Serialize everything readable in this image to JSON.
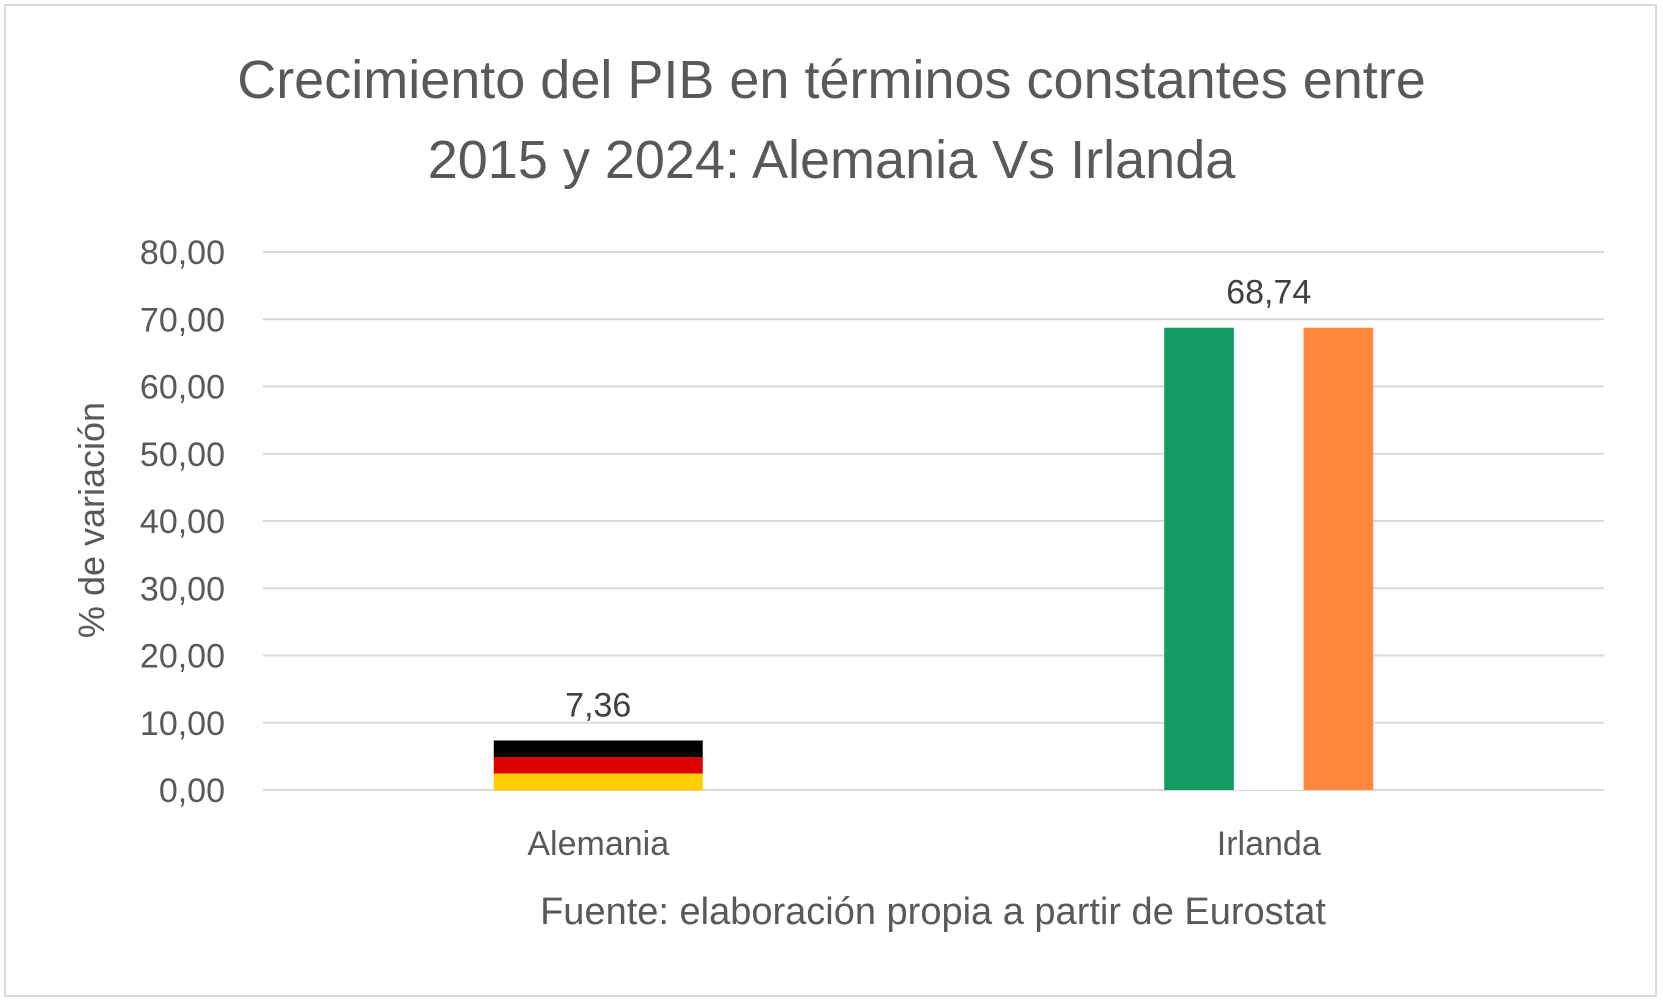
{
  "chart_data": {
    "type": "bar",
    "title_line1": "Crecimiento del PIB en términos constantes entre",
    "title_line2": "2015 y 2024: Alemania Vs Irlanda",
    "ylabel": "% de variación",
    "xlabel": "Fuente: elaboración propia a partir de Eurostat",
    "categories": [
      "Alemania",
      "Irlanda"
    ],
    "values": [
      7.36,
      68.74
    ],
    "data_labels": [
      "7,36",
      "68,74"
    ],
    "ylim": [
      0,
      80
    ],
    "yticks": [
      "0,00",
      "10,00",
      "20,00",
      "30,00",
      "40,00",
      "50,00",
      "60,00",
      "70,00",
      "80,00"
    ],
    "grid": true,
    "bar_fills": {
      "Alemania": [
        "#000000",
        "#DD0000",
        "#FFCE00"
      ],
      "Irlanda": [
        "#169B62",
        "#FFFFFF",
        "#FF883E"
      ]
    },
    "gridline_color": "#d9d9d9"
  }
}
